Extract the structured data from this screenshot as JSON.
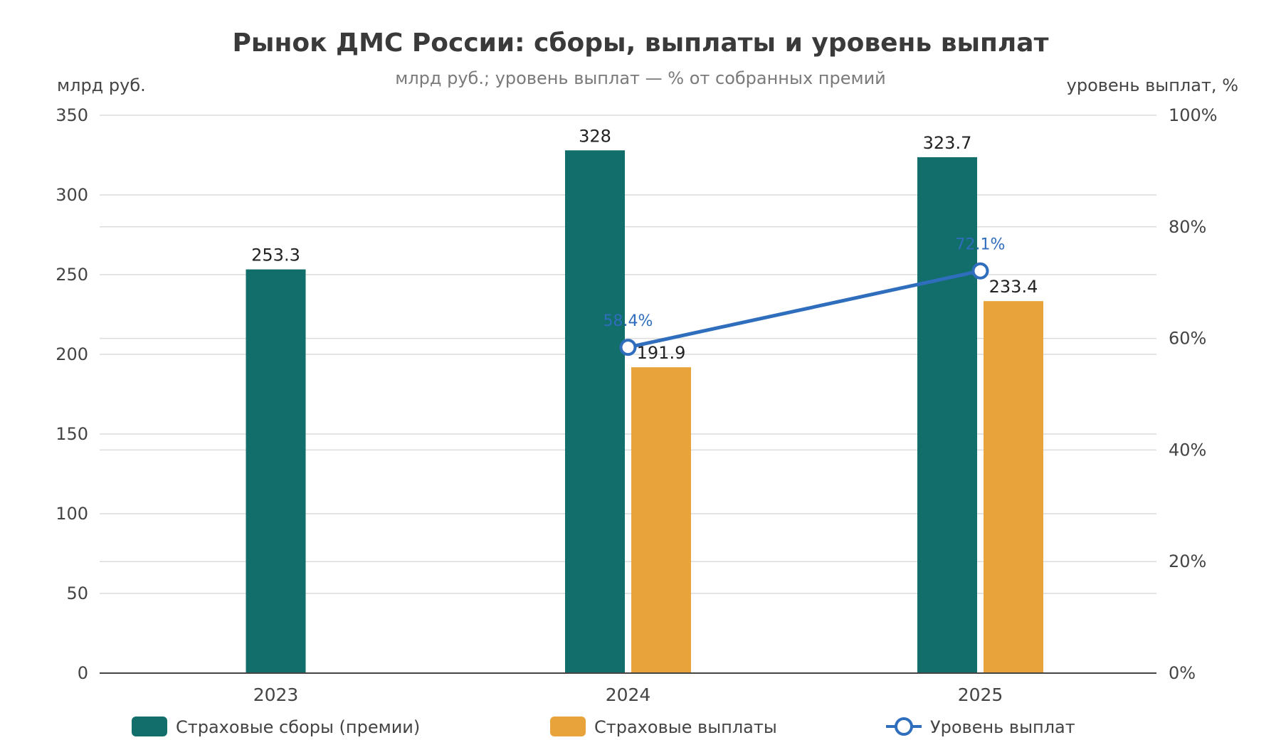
{
  "chart_data": {
    "type": "bar",
    "title": "Рынок ДМС России: сборы, выплаты и уровень выплат",
    "subtitle": "млрд руб.; уровень выплат — % от собранных премий",
    "ylabel": "млрд руб.",
    "y2label": "уровень выплат, %",
    "categories": [
      "2023",
      "2024",
      "2025"
    ],
    "ylim": [
      0,
      350
    ],
    "yticks": [
      0,
      50,
      100,
      150,
      200,
      250,
      300,
      350
    ],
    "y2lim": [
      0,
      100
    ],
    "y2ticks": [
      0,
      20,
      40,
      60,
      80,
      100
    ],
    "y2_tick_suffix": "%",
    "grid": true,
    "legend_position": "bottom",
    "series": [
      {
        "name": "Страховые сборы (премии)",
        "kind": "bar",
        "color": "#116e6a",
        "values": [
          253.3,
          328,
          323.7
        ],
        "labels": [
          "253.3",
          "328",
          "323.7"
        ]
      },
      {
        "name": "Страховые выплаты",
        "kind": "bar",
        "color": "#e8a33b",
        "values": [
          null,
          191.9,
          233.4
        ],
        "labels": [
          "",
          "191.9",
          "233.4"
        ]
      },
      {
        "name": "Уровень выплат",
        "kind": "line",
        "axis": "right",
        "color": "#2f6dbd",
        "values": [
          null,
          58.4,
          72.1
        ],
        "labels": [
          "",
          "58.4%",
          "72.1%"
        ]
      }
    ]
  }
}
